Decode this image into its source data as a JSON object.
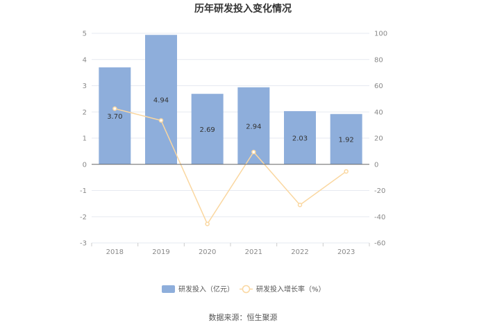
{
  "chart_data": {
    "type": "bar",
    "title": "历年研发投入变化情况",
    "categories": [
      "2018",
      "2019",
      "2020",
      "2021",
      "2022",
      "2023"
    ],
    "series": [
      {
        "name": "研发投入（亿元）",
        "type": "bar",
        "axis": "left",
        "values": [
          3.7,
          4.94,
          2.69,
          2.94,
          2.03,
          1.92
        ],
        "labels": [
          "3.70",
          "4.94",
          "2.69",
          "2.94",
          "2.03",
          "1.92"
        ],
        "color": "#8eaedb"
      },
      {
        "name": "研发投入增长率（%）",
        "type": "line",
        "axis": "right",
        "values": [
          42.5,
          33.5,
          -45.5,
          9.4,
          -31.0,
          -5.4
        ],
        "color": "#fad7a0"
      }
    ],
    "y_left": {
      "ylim": [
        -3,
        5
      ],
      "ticks": [
        "5",
        "4",
        "3",
        "2",
        "1",
        "0",
        "-1",
        "-2",
        "-3"
      ]
    },
    "y_right": {
      "ylim": [
        -60,
        100
      ],
      "ticks": [
        "100",
        "80",
        "60",
        "40",
        "20",
        "0",
        "-20",
        "-40",
        "-60"
      ]
    },
    "grid": true,
    "legend_position": "bottom"
  },
  "source": "数据来源：恒生聚源"
}
